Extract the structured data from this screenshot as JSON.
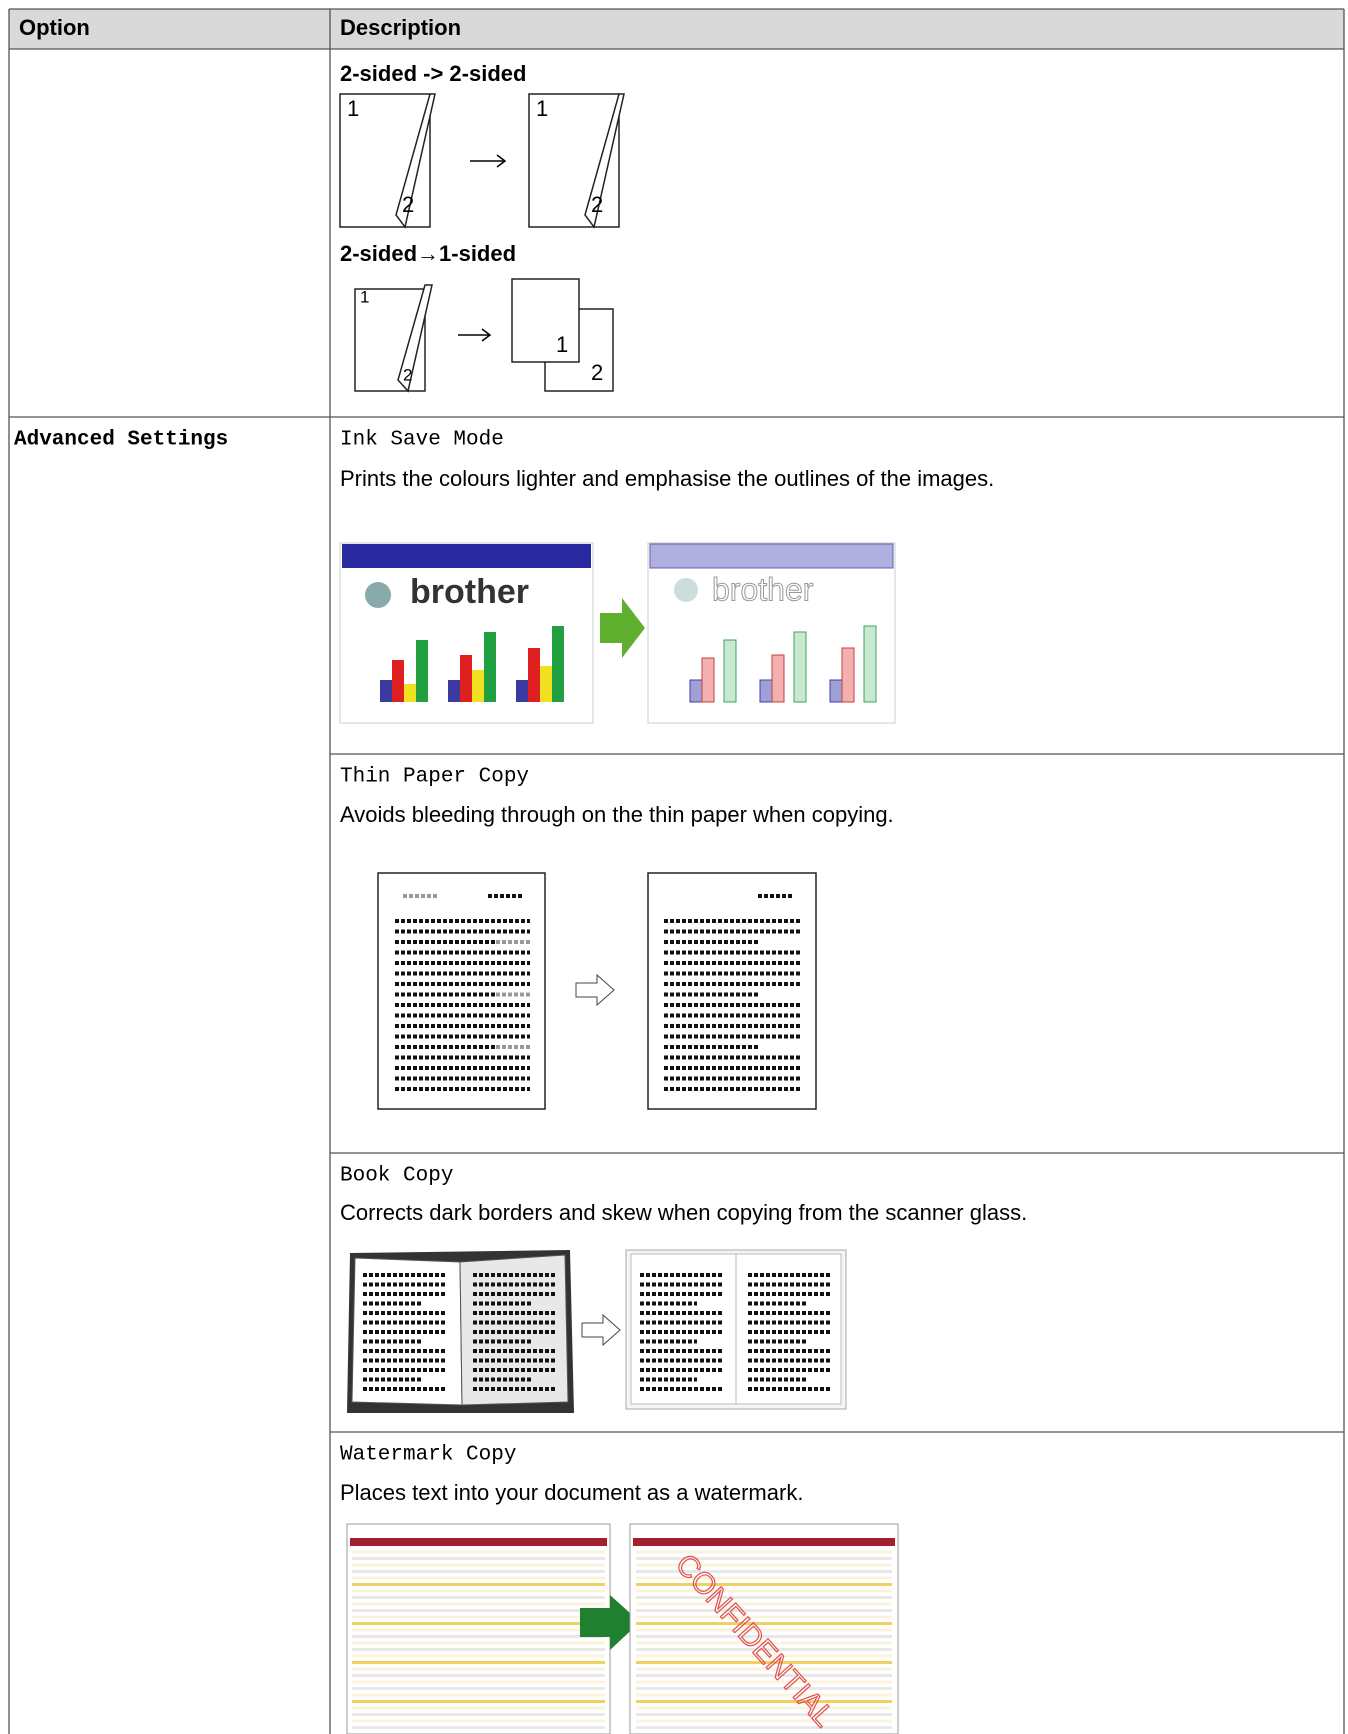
{
  "table": {
    "header": [
      "Option",
      "Description"
    ],
    "rows": [
      {
        "option": null,
        "items": [
          {
            "heading": "2-sided -> 2-sided",
            "labels": [
              "1",
              "2",
              "1",
              "2"
            ]
          },
          {
            "heading": "2-sided→1-sided",
            "labels": [
              "1",
              "2",
              "1",
              "2"
            ]
          }
        ]
      },
      {
        "option": "Advanced Settings",
        "items": [
          {
            "name": "Ink Save Mode",
            "description": "Prints the colours lighter and emphasise the outlines of the images.",
            "labels": [
              "brother",
              "brother"
            ]
          },
          {
            "name": "Thin Paper Copy",
            "description": "Avoids bleeding through on the thin paper when copying."
          },
          {
            "name": "Book Copy",
            "description": "Corrects dark borders and skew when copying from the scanner glass."
          },
          {
            "name": "Watermark Copy",
            "description": "Places text into your document as a watermark.",
            "labels": [
              "CONFIDENTIAL"
            ]
          }
        ]
      }
    ]
  }
}
